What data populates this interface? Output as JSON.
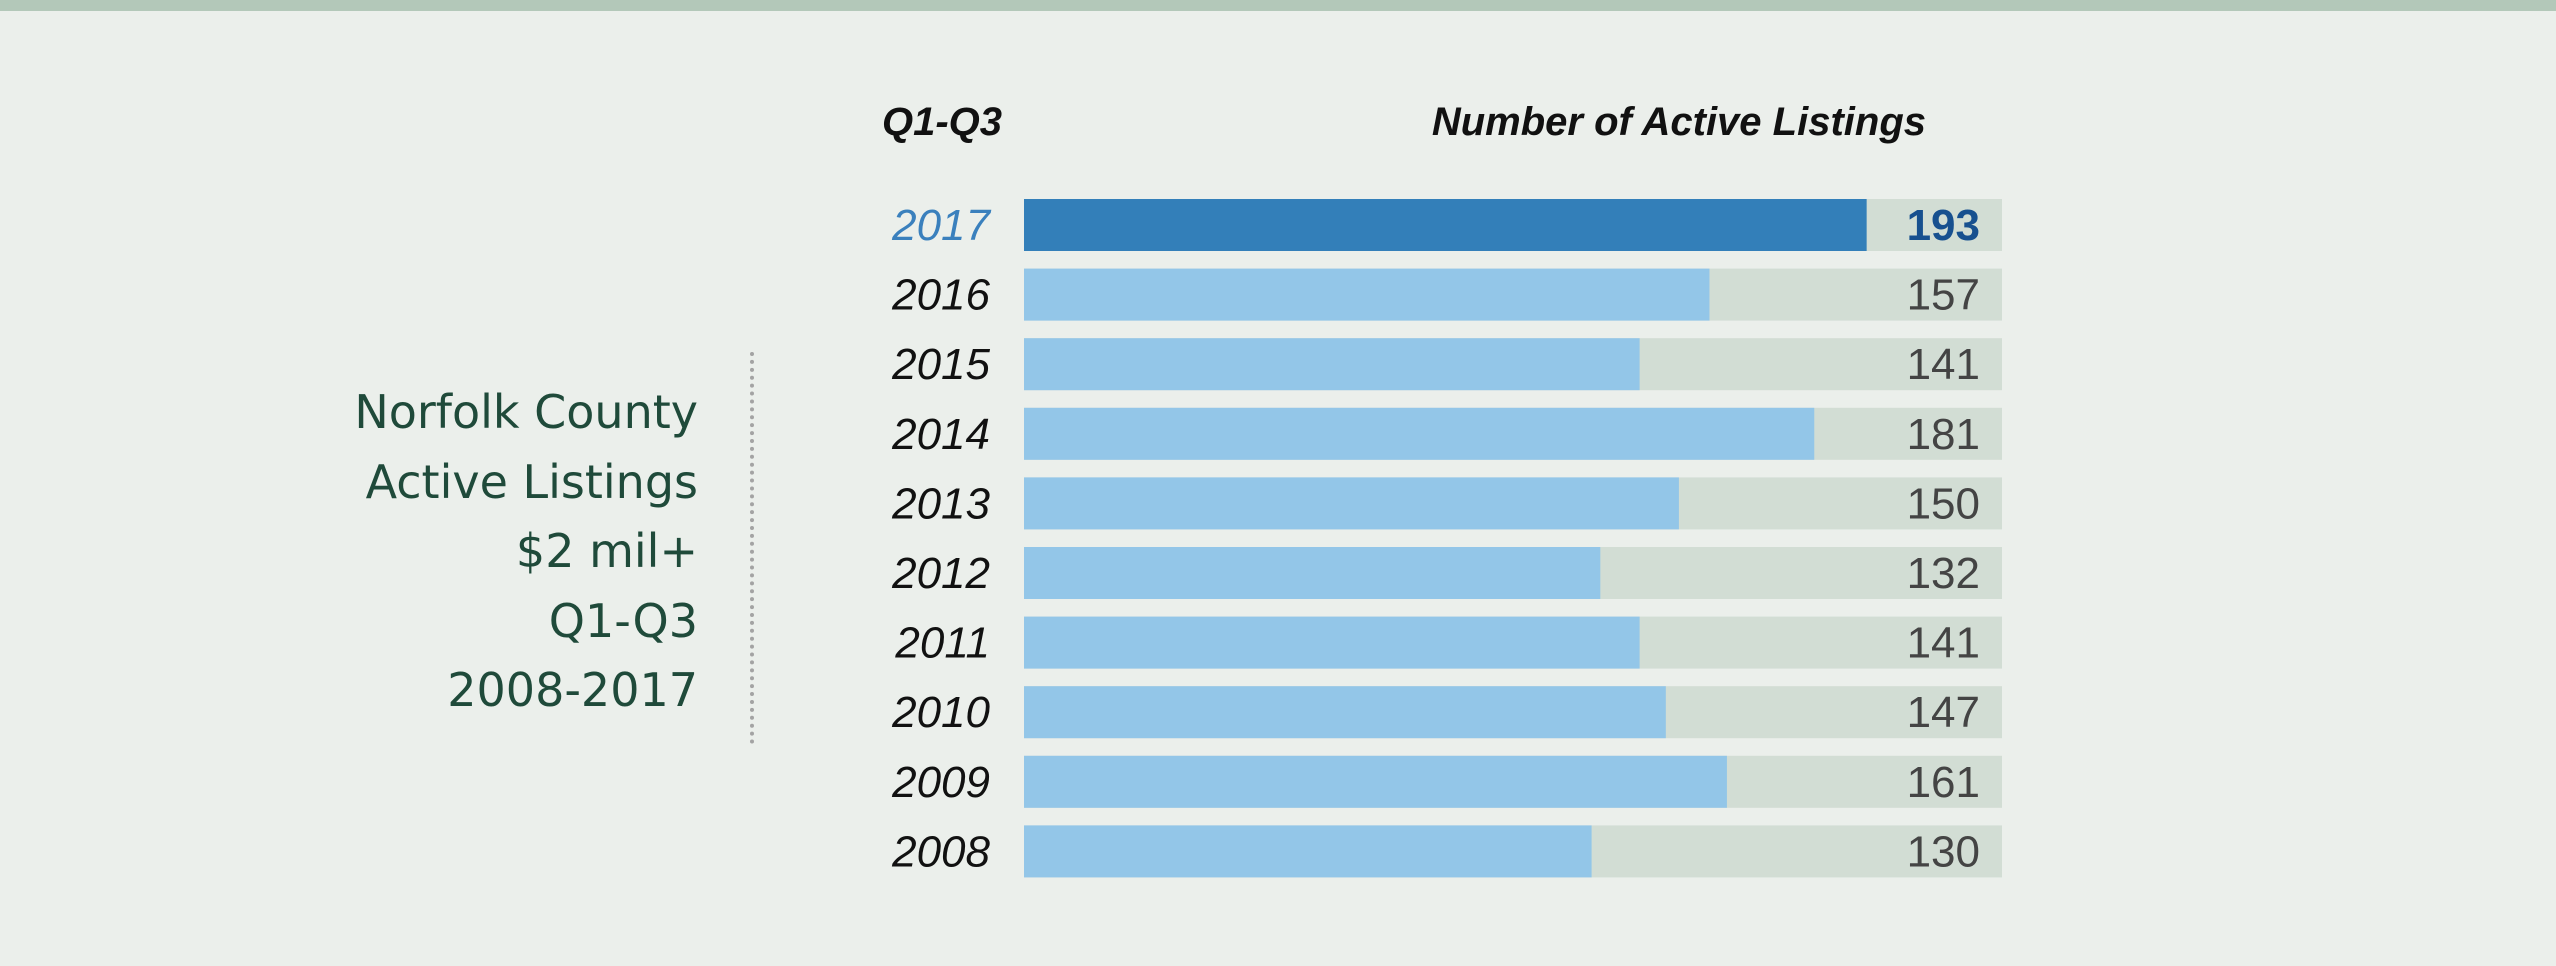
{
  "side_title": [
    "Norfolk County",
    "Active Listings",
    "$2 mil+",
    "Q1-Q3",
    "2008-2017"
  ],
  "chart_data": {
    "type": "bar",
    "orientation": "horizontal",
    "category_header": "Q1-Q3",
    "title": "Number of Active Listings",
    "categories": [
      "2017",
      "2016",
      "2015",
      "2014",
      "2013",
      "2012",
      "2011",
      "2010",
      "2009",
      "2008"
    ],
    "values": [
      193,
      157,
      141,
      181,
      150,
      132,
      141,
      147,
      161,
      130
    ],
    "xlim": [
      0,
      224
    ],
    "highlight": "2017",
    "grid": false,
    "colors": {
      "bar": "#93c6e8",
      "bar_highlight": "#337fb9",
      "track": "#d2ddd4",
      "label_highlight": "#3a80bd",
      "value_highlight": "#17508f"
    }
  }
}
